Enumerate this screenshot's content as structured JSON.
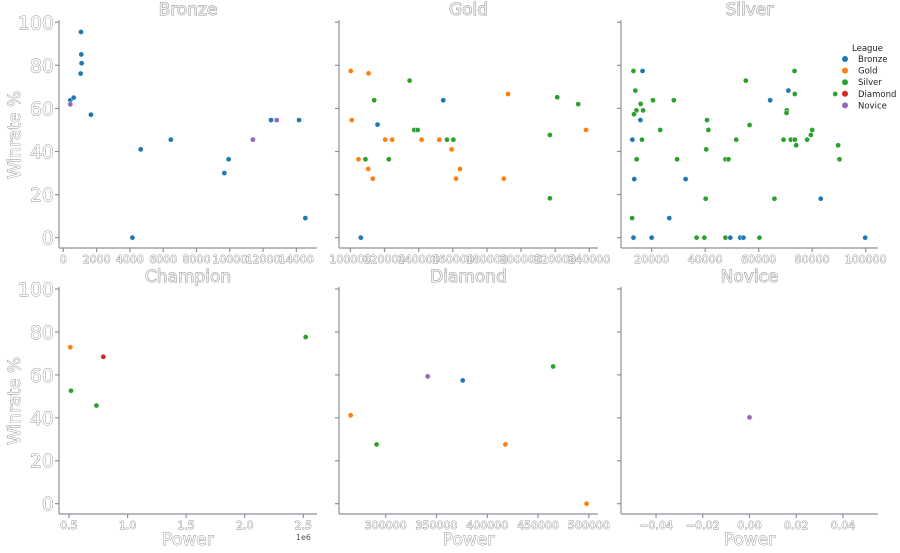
{
  "chart_data": {
    "type": "scatter",
    "xlabel": "Power",
    "ylabel": "Winrate %",
    "ylim": [
      -4.8,
      100.5
    ],
    "yticks": [
      0,
      20,
      40,
      60,
      80,
      100
    ],
    "ytick_labels": [
      "0",
      "20",
      "40",
      "60",
      "80",
      "100"
    ],
    "grid": false,
    "legend": {
      "title": "League",
      "placement": "top-right",
      "entries": [
        "Bronze",
        "Gold",
        "Silver",
        "Diamond",
        "Novice"
      ]
    },
    "colors": {
      "Bronze": "#1f77b4",
      "Gold": "#ff7f0e",
      "Silver": "#2ca02c",
      "Diamond": "#d62728",
      "Novice": "#9467bd"
    },
    "panels": [
      {
        "title": "Bronze",
        "xlim": [
          -260,
          15240
        ],
        "xticks": [
          0,
          2000,
          4000,
          6000,
          8000,
          10000,
          12000,
          14000
        ],
        "xtick_labels": [
          "0",
          "2000",
          "4000",
          "6000",
          "8000",
          "10000",
          "12000",
          "14000"
        ],
        "offset_label": "",
        "points": [
          [
            1060,
            95.5,
            "Bronze"
          ],
          [
            1080,
            85.1,
            "Bronze"
          ],
          [
            1100,
            81.0,
            "Bronze"
          ],
          [
            1040,
            76.2,
            "Bronze"
          ],
          [
            420,
            63.8,
            "Bronze"
          ],
          [
            620,
            65.0,
            "Bronze"
          ],
          [
            420,
            61.9,
            "Novice"
          ],
          [
            1660,
            57.1,
            "Bronze"
          ],
          [
            4150,
            0,
            "Bronze"
          ],
          [
            4650,
            41.0,
            "Bronze"
          ],
          [
            6460,
            45.5,
            "Bronze"
          ],
          [
            9670,
            30.0,
            "Bronze"
          ],
          [
            9930,
            36.4,
            "Bronze"
          ],
          [
            11390,
            45.5,
            "Novice"
          ],
          [
            12480,
            54.6,
            "Bronze"
          ],
          [
            12820,
            54.6,
            "Novice"
          ],
          [
            14160,
            54.6,
            "Bronze"
          ],
          [
            14540,
            9.1,
            "Bronze"
          ]
        ]
      },
      {
        "title": "Gold",
        "xlim": [
          93300,
          245100
        ],
        "xticks": [
          100000,
          120000,
          140000,
          160000,
          180000,
          200000,
          220000,
          240000
        ],
        "xtick_labels": [
          "100000",
          "120000",
          "140000",
          "160000",
          "180000",
          "200000",
          "220000",
          "240000"
        ],
        "offset_label": "",
        "points": [
          [
            100200,
            77.4,
            "Gold"
          ],
          [
            110600,
            76.3,
            "Gold"
          ],
          [
            134700,
            72.9,
            "Silver"
          ],
          [
            113900,
            63.8,
            "Silver"
          ],
          [
            154400,
            63.8,
            "Bronze"
          ],
          [
            192400,
            66.7,
            "Gold"
          ],
          [
            221200,
            65.2,
            "Silver"
          ],
          [
            233500,
            62.0,
            "Silver"
          ],
          [
            100800,
            54.6,
            "Gold"
          ],
          [
            115900,
            52.5,
            "Bronze"
          ],
          [
            137400,
            50.0,
            "Silver"
          ],
          [
            139400,
            50.0,
            "Silver"
          ],
          [
            238100,
            50.0,
            "Gold"
          ],
          [
            216900,
            47.7,
            "Silver"
          ],
          [
            120400,
            45.5,
            "Gold"
          ],
          [
            124500,
            45.5,
            "Gold"
          ],
          [
            141700,
            45.5,
            "Gold"
          ],
          [
            152100,
            45.5,
            "Gold"
          ],
          [
            156600,
            45.5,
            "Silver"
          ],
          [
            160300,
            45.5,
            "Silver"
          ],
          [
            159300,
            41.0,
            "Gold"
          ],
          [
            104700,
            36.4,
            "Gold"
          ],
          [
            108800,
            36.4,
            "Silver"
          ],
          [
            122500,
            36.4,
            "Silver"
          ],
          [
            110400,
            31.9,
            "Gold"
          ],
          [
            164200,
            31.9,
            "Gold"
          ],
          [
            113100,
            27.4,
            "Gold"
          ],
          [
            161900,
            27.4,
            "Gold"
          ],
          [
            189900,
            27.4,
            "Gold"
          ],
          [
            216900,
            18.3,
            "Silver"
          ],
          [
            106100,
            0,
            "Bronze"
          ]
        ]
      },
      {
        "title": "Silver",
        "xlim": [
          8550,
          104600
        ],
        "xticks": [
          20000,
          40000,
          60000,
          80000,
          100000
        ],
        "xtick_labels": [
          "20000",
          "40000",
          "60000",
          "80000",
          "100000"
        ],
        "offset_label": "",
        "points": [
          [
            13200,
            77.4,
            "Silver"
          ],
          [
            16600,
            77.4,
            "Bronze"
          ],
          [
            55200,
            72.9,
            "Silver"
          ],
          [
            73400,
            77.4,
            "Silver"
          ],
          [
            13900,
            68.3,
            "Silver"
          ],
          [
            71100,
            68.3,
            "Bronze"
          ],
          [
            73500,
            66.7,
            "Silver"
          ],
          [
            88600,
            66.7,
            "Silver"
          ],
          [
            20500,
            63.8,
            "Silver"
          ],
          [
            28300,
            63.8,
            "Silver"
          ],
          [
            64300,
            63.8,
            "Bronze"
          ],
          [
            15900,
            62.1,
            "Silver"
          ],
          [
            14300,
            59.1,
            "Silver"
          ],
          [
            16800,
            59.1,
            "Silver"
          ],
          [
            70500,
            59.1,
            "Silver"
          ],
          [
            70400,
            57.9,
            "Silver"
          ],
          [
            13400,
            57.3,
            "Silver"
          ],
          [
            15800,
            54.6,
            "Bronze"
          ],
          [
            40700,
            54.6,
            "Silver"
          ],
          [
            56600,
            52.3,
            "Silver"
          ],
          [
            23200,
            50.0,
            "Silver"
          ],
          [
            41200,
            50.0,
            "Silver"
          ],
          [
            80000,
            50.0,
            "Silver"
          ],
          [
            79500,
            47.7,
            "Silver"
          ],
          [
            12800,
            45.5,
            "Bronze"
          ],
          [
            16400,
            45.5,
            "Silver"
          ],
          [
            51600,
            45.5,
            "Silver"
          ],
          [
            69300,
            45.5,
            "Silver"
          ],
          [
            72000,
            45.5,
            "Silver"
          ],
          [
            73500,
            45.5,
            "Silver"
          ],
          [
            78100,
            45.5,
            "Silver"
          ],
          [
            74000,
            42.9,
            "Silver"
          ],
          [
            89700,
            42.9,
            "Silver"
          ],
          [
            40400,
            41.0,
            "Silver"
          ],
          [
            14400,
            36.4,
            "Silver"
          ],
          [
            29500,
            36.4,
            "Silver"
          ],
          [
            47600,
            36.4,
            "Silver"
          ],
          [
            48700,
            36.4,
            "Silver"
          ],
          [
            90200,
            36.4,
            "Silver"
          ],
          [
            13500,
            27.2,
            "Bronze"
          ],
          [
            32700,
            27.2,
            "Bronze"
          ],
          [
            40200,
            18.1,
            "Silver"
          ],
          [
            65900,
            18.1,
            "Silver"
          ],
          [
            83200,
            18.1,
            "Bronze"
          ],
          [
            12700,
            9.1,
            "Silver"
          ],
          [
            26600,
            9.1,
            "Bronze"
          ],
          [
            13200,
            0,
            "Bronze"
          ],
          [
            20000,
            0,
            "Bronze"
          ],
          [
            36800,
            0,
            "Silver"
          ],
          [
            39700,
            0,
            "Silver"
          ],
          [
            47600,
            0,
            "Silver"
          ],
          [
            49400,
            0,
            "Bronze"
          ],
          [
            53100,
            0,
            "Bronze"
          ],
          [
            54300,
            0,
            "Bronze"
          ],
          [
            60300,
            0,
            "Silver"
          ],
          [
            99800,
            0,
            "Bronze"
          ]
        ]
      },
      {
        "title": "Champion",
        "xlim": [
          0.4145,
          2.617
        ],
        "xticks": [
          0.5,
          1.0,
          1.5,
          2.0,
          2.5
        ],
        "xtick_labels": [
          "0.5",
          "1.0",
          "1.5",
          "2.0",
          "2.5"
        ],
        "offset_label": "1e6",
        "points": [
          [
            0.511,
            72.9,
            "Gold"
          ],
          [
            0.793,
            68.4,
            "Diamond"
          ],
          [
            0.517,
            52.6,
            "Silver"
          ],
          [
            0.734,
            45.7,
            "Silver"
          ],
          [
            2.52,
            77.6,
            "Silver"
          ]
        ]
      },
      {
        "title": "Diamond",
        "xlim": [
          254000,
          509000
        ],
        "xticks": [
          300000,
          350000,
          400000,
          450000,
          500000
        ],
        "xtick_labels": [
          "300000",
          "350000",
          "400000",
          "450000",
          "500000"
        ],
        "offset_label": "",
        "points": [
          [
            265500,
            41.2,
            "Gold"
          ],
          [
            291000,
            27.6,
            "Silver"
          ],
          [
            341300,
            59.3,
            "Novice"
          ],
          [
            375800,
            57.4,
            "Bronze"
          ],
          [
            464800,
            63.9,
            "Silver"
          ],
          [
            417800,
            27.6,
            "Gold"
          ],
          [
            497800,
            0,
            "Gold"
          ]
        ]
      },
      {
        "title": "Novice",
        "xlim": [
          -0.055,
          0.055
        ],
        "xticks": [
          -0.04,
          -0.02,
          0.0,
          0.02,
          0.04
        ],
        "xtick_labels": [
          "−0.04",
          "−0.02",
          "0.00",
          "0.02",
          "0.04"
        ],
        "offset_label": "",
        "points": [
          [
            0.0,
            40.2,
            "Novice"
          ]
        ]
      }
    ]
  }
}
